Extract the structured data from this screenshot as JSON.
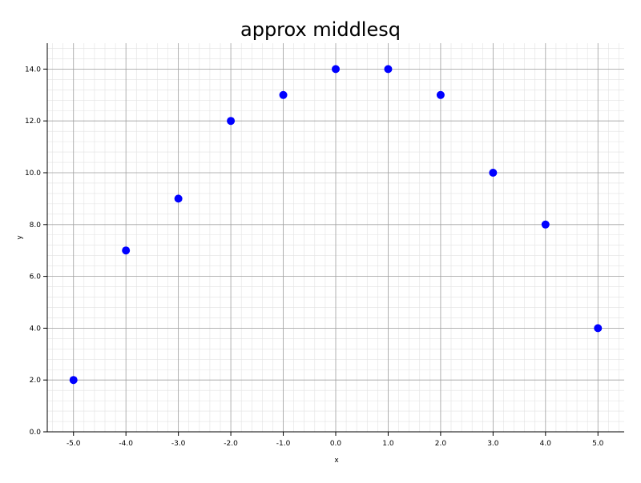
{
  "chart_data": {
    "type": "scatter",
    "title": "approx middlesq",
    "xlabel": "x",
    "ylabel": "y",
    "xlim": [
      -5.5,
      5.5
    ],
    "ylim": [
      0,
      15
    ],
    "x_ticks": [
      -5,
      -4,
      -3,
      -2,
      -1,
      0,
      1,
      2,
      3,
      4,
      5
    ],
    "x_tick_labels": [
      "-5.0",
      "-4.0",
      "-3.0",
      "-2.0",
      "-1.0",
      "0.0",
      "1.0",
      "2.0",
      "3.0",
      "4.0",
      "5.0"
    ],
    "y_ticks": [
      0,
      2,
      4,
      6,
      8,
      10,
      12,
      14
    ],
    "y_tick_labels": [
      "0.0",
      "2.0",
      "4.0",
      "6.0",
      "8.0",
      "10.0",
      "12.0",
      "14.0"
    ],
    "grid": true,
    "series": [
      {
        "x": [
          -5,
          -4,
          -3,
          -2,
          -1,
          0,
          1,
          2,
          3,
          4,
          5
        ],
        "y": [
          2,
          7,
          9,
          12,
          13,
          14,
          14,
          13,
          10,
          8,
          4
        ],
        "color": "#0000ff"
      }
    ]
  }
}
